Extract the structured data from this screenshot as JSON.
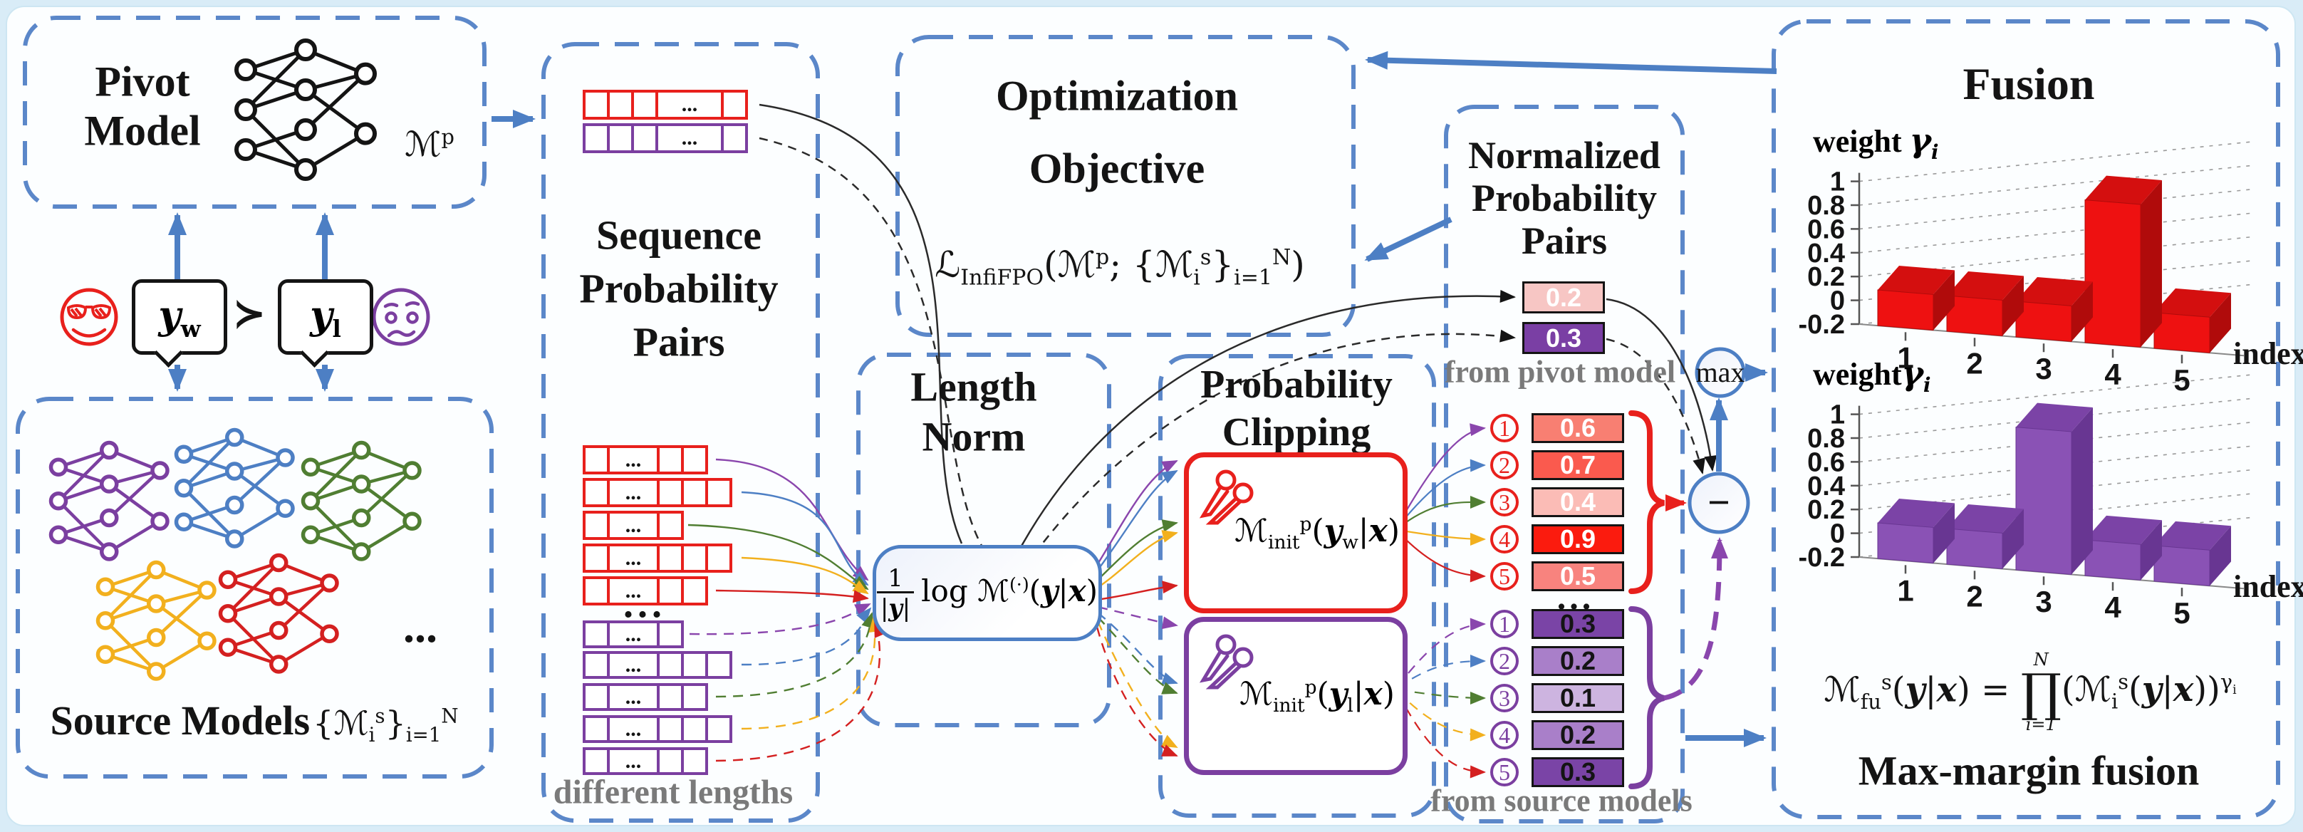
{
  "pivot": {
    "title_lines": [
      "Pivot",
      "Model"
    ],
    "symbol_html": "ℳ<sup>p</sup>"
  },
  "preference": {
    "winner_html": "<i><b>y</b></i><sub>w</sub>",
    "relation": "≻",
    "loser_html": "<i><b>y</b></i><sub>l</sub>"
  },
  "source": {
    "title": "Source Models",
    "set_html": "{ℳ<sub>i</sub><sup>s</sup>}<sub>i=1</sub><sup>N</sup>",
    "ellipsis": "..."
  },
  "sequence": {
    "title_lines": [
      "Sequence",
      "Probability",
      "Pairs"
    ],
    "cell_ellipsis": "...",
    "group_ellipsis": "...",
    "footnote": "different lengths",
    "winner_color": "#e8201c",
    "loser_color": "#7b3fa0",
    "pair_rows": [
      {
        "role": "winner",
        "cells": [
          "s",
          "s",
          "s",
          "e",
          "s"
        ]
      },
      {
        "role": "loser",
        "cells": [
          "s",
          "s",
          "s",
          "e",
          "s"
        ]
      }
    ],
    "winner_rows": [
      {
        "cells": [
          "s",
          "e",
          "s",
          "s"
        ]
      },
      {
        "cells": [
          "s",
          "e",
          "s",
          "s",
          "s"
        ]
      },
      {
        "cells": [
          "s",
          "e",
          "s"
        ]
      },
      {
        "cells": [
          "s",
          "e",
          "s",
          "s",
          "s"
        ]
      },
      {
        "cells": [
          "s",
          "e",
          "s",
          "s"
        ]
      }
    ],
    "loser_rows": [
      {
        "cells": [
          "s",
          "e",
          "s"
        ]
      },
      {
        "cells": [
          "s",
          "e",
          "s",
          "s",
          "s"
        ]
      },
      {
        "cells": [
          "s",
          "e",
          "s",
          "s"
        ]
      },
      {
        "cells": [
          "s",
          "e",
          "s",
          "s",
          "s"
        ]
      },
      {
        "cells": [
          "s",
          "e",
          "s",
          "s"
        ]
      }
    ]
  },
  "length_norm": {
    "title_lines": [
      "Length",
      "Norm"
    ],
    "formula": {
      "numerator": "1",
      "denominator_html": "|<i><b>y</b></i>|",
      "body_html": "log ℳ<sup>(·)</sup>(<i><b>y</b></i>|<i><b>x</b></i>)"
    }
  },
  "objective": {
    "title_lines": [
      "Optimization",
      "Objective"
    ],
    "formula_html": "ℒ<sub>InfiFPO</sub>(ℳ<sup>p</sup>; {ℳ<sub>i</sub><sup>s</sup>}<sub>i=1</sub><sup>N</sup>)"
  },
  "clipping": {
    "title_lines": [
      "Probability",
      "Clipping"
    ],
    "winner_formula_html": "ℳ<sub>init</sub><sup>p</sup>(<i><b>y</b></i><sub>w</sub>|<i><b>x</b></i>)",
    "loser_formula_html": "ℳ<sub>init</sub><sup>p</sup>(<i><b>y</b></i><sub>l</sub>|<i><b>x</b></i>)"
  },
  "normalized": {
    "title_lines": [
      "Normalized",
      "Probability",
      "Pairs"
    ],
    "pivot_pair": [
      {
        "value": "0.2",
        "fill": "#f7c6c4",
        "text": "#ffffff"
      },
      {
        "value": "0.3",
        "fill": "#7a3fa4",
        "text": "#ffffff"
      }
    ],
    "pivot_note": "from pivot model",
    "winner_values": [
      {
        "index": "1",
        "value": "0.6",
        "fill": "#f87f72",
        "text": "#ffffff"
      },
      {
        "index": "2",
        "value": "0.7",
        "fill": "#fa5a4e",
        "text": "#ffffff"
      },
      {
        "index": "3",
        "value": "0.4",
        "fill": "#fbbcb6",
        "text": "#ffffff"
      },
      {
        "index": "4",
        "value": "0.9",
        "fill": "#fb1b0e",
        "text": "#ffffff"
      },
      {
        "index": "5",
        "value": "0.5",
        "fill": "#f8837e",
        "text": "#ffffff"
      }
    ],
    "group_ellipsis": "...",
    "loser_values": [
      {
        "index": "1",
        "value": "0.3",
        "fill": "#7a44a6",
        "text": "#141414"
      },
      {
        "index": "2",
        "value": "0.2",
        "fill": "#a97fc9",
        "text": "#141414"
      },
      {
        "index": "3",
        "value": "0.1",
        "fill": "#cdb4e0",
        "text": "#141414"
      },
      {
        "index": "4",
        "value": "0.2",
        "fill": "#a97fc9",
        "text": "#141414"
      },
      {
        "index": "5",
        "value": "0.3",
        "fill": "#7a44a6",
        "text": "#141414"
      }
    ],
    "source_note": "from source models"
  },
  "operators": {
    "max": "max",
    "minus": "−"
  },
  "fusion": {
    "title": "Fusion",
    "formula_html": "ℳ<sub>fu</sub><sup>s</sup>(<i><b>y</b></i>|<i><b>x</b></i>) = <span class=\"bigop\"><span class=\"lim\">N</span><span class=\"op\">∏</span><span class=\"lim\">i=1</span></span><span>(ℳ<sub>i</sub><sup>s</sup>(<i><b>y</b></i>|<i><b>x</b></i>))<sup>γ<sub>i</sub></sup></span>",
    "caption": "Max-margin fusion"
  },
  "chart_data": [
    {
      "type": "bar",
      "name": "winner-fusion-weights",
      "categories": [
        "1",
        "2",
        "3",
        "4",
        "5"
      ],
      "values": [
        0.1,
        0.1,
        0.1,
        1.0,
        0.1
      ],
      "yticks": [
        1,
        0.8,
        0.6,
        0.4,
        0.2,
        0,
        -0.2
      ],
      "ylim": [
        -0.2,
        1
      ],
      "ylabel": {
        "prefix": "weight ",
        "symbol": "γ",
        "subscript": "i"
      },
      "xlabel": "index",
      "front_color": "#ee1111",
      "top_color": "#d40f0f",
      "side_color": "#b00b0b",
      "grid": true,
      "legend": "none"
    },
    {
      "type": "bar",
      "name": "loser-fusion-weights",
      "categories": [
        "1",
        "2",
        "3",
        "4",
        "5"
      ],
      "values": [
        0.1,
        0.1,
        1.0,
        0.1,
        0.1
      ],
      "yticks": [
        1,
        0.8,
        0.6,
        0.4,
        0.2,
        0,
        -0.2
      ],
      "ylim": [
        -0.2,
        1
      ],
      "ylabel": {
        "prefix": "weight",
        "symbol": "γ",
        "subscript": "i"
      },
      "xlabel": "index",
      "front_color": "#8a52b5",
      "top_color": "#7b43a6",
      "side_color": "#683692",
      "grid": true,
      "legend": "none"
    }
  ],
  "icons": {
    "pivot_network_color": "#141414",
    "source_network_colors": [
      "#7b3fa0",
      "#4d7fc4",
      "#507e32",
      "#f2b01e",
      "#d42020"
    ],
    "winner_scissors_color": "#e8201c",
    "loser_scissors_color": "#7b3fa0",
    "happy_face_color": "#e8201c",
    "worried_face_color": "#7b3fa0",
    "accent_blue": "#4d7fc4"
  }
}
